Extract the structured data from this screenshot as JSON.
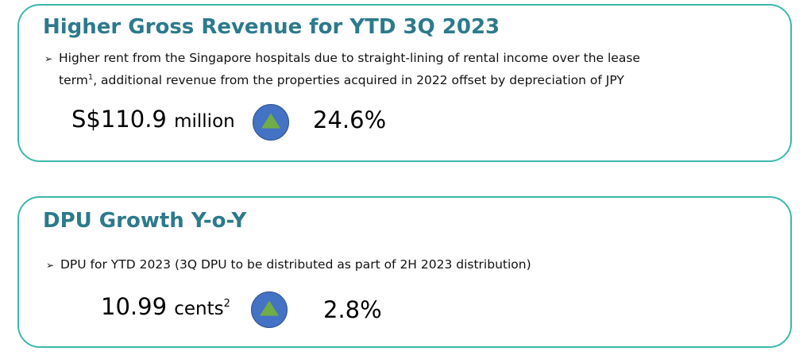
{
  "revenue_card": {
    "title": "Higher Gross Revenue for YTD 3Q 2023",
    "bullet_arrow": "➢",
    "bullet_line1": "Higher rent from the Singapore hospitals due to straight-lining of rental income over the lease",
    "bullet_line2_pre": "term",
    "bullet_footnote": "1",
    "bullet_line2_post": ", additional revenue from the properties acquired in 2022 offset by depreciation of JPY",
    "value": "S$110.9",
    "unit": "million",
    "change_direction": "up",
    "change_pct": "24.6%"
  },
  "dpu_card": {
    "title": "DPU Growth Y-o-Y",
    "bullet_arrow": "➢",
    "bullet_text": "DPU for YTD 2023 (3Q DPU to be distributed as part of 2H 2023 distribution)",
    "value": "10.99",
    "unit": "cents",
    "unit_footnote": "2",
    "change_direction": "up",
    "change_pct": "2.8%"
  },
  "colors": {
    "card_border": "#3CB8AC",
    "title_text": "#2C7A8C",
    "circle_fill": "#4472C4",
    "arrow_fill": "#70AD47"
  },
  "icons": {
    "up_indicator": "up-triangle-icon"
  }
}
